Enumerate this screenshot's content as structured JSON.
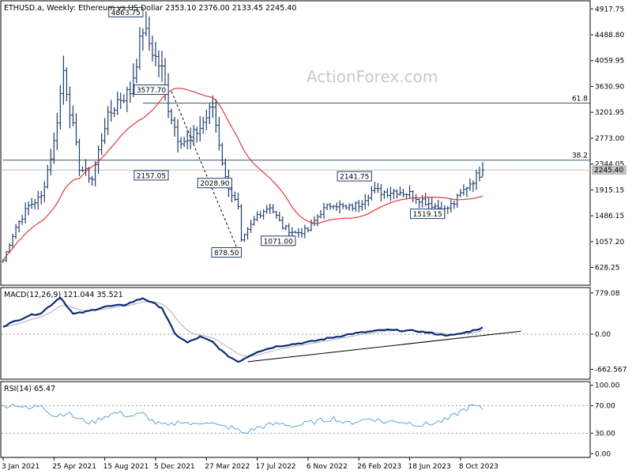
{
  "header": {
    "title": "ETHUSD.a, Weekly:  Ethereum vs US Dollar  2353.10 2376.00 2133.45 2245.40"
  },
  "watermark": "ActionForex.com",
  "colors": {
    "candle": "#1f3d6d",
    "ma": "#e03a3a",
    "macd": "#0b2a7a",
    "macd_signal": "#b0b0b0",
    "rsi": "#5aa6da",
    "fib": "#3e5a70",
    "trend": "#000000"
  },
  "price_axis": {
    "min": 400,
    "max": 5000,
    "ticks": [
      "4917.75",
      "4488.80",
      "4059.95",
      "3630.90",
      "3201.95",
      "2773.00",
      "2344.05",
      "1915.15",
      "1486.15",
      "1057.20",
      "628.25"
    ],
    "tick_values": [
      4917.75,
      4488.8,
      4059.95,
      3630.9,
      3201.95,
      2773.0,
      2344.05,
      1915.15,
      1486.15,
      1057.2,
      628.25
    ],
    "current_price": "2245.40",
    "current_value": 2245.4
  },
  "macd_axis": {
    "min": -820,
    "max": 850,
    "ticks": [
      "779.08",
      "0.00",
      "-662.567"
    ],
    "tick_values": [
      779.08,
      0,
      -662.567
    ]
  },
  "rsi_axis": {
    "min": -3,
    "max": 103,
    "ticks": [
      "100.00",
      "70.00",
      "30.00",
      "0.00"
    ],
    "tick_values": [
      100,
      70,
      30,
      0
    ]
  },
  "time_axis": {
    "labels": [
      "3 Jan 2021",
      "25 Apr 2021",
      "15 Aug 2021",
      "5 Dec 2021",
      "27 Mar 2022",
      "17 Jul 2022",
      "6 Nov 2022",
      "26 Feb 2023",
      "18 Jun 2023",
      "8 Oct 2023"
    ],
    "label_weeks": [
      0,
      16,
      32,
      48,
      64,
      80,
      96,
      112,
      128,
      144
    ]
  },
  "fib_levels": [
    {
      "label": "61.8",
      "value": 3355,
      "start_week": 44
    },
    {
      "label": "38.2",
      "value": 2409,
      "start_week": 0
    }
  ],
  "price_labels": [
    {
      "text": "4863.75",
      "week": 44,
      "value": 4863.75
    },
    {
      "text": "3577.70",
      "week": 52,
      "value": 3577.7
    },
    {
      "text": "2157.05",
      "week": 52,
      "value": 2157.05
    },
    {
      "text": "2028.90",
      "week": 72,
      "value": 2028.9
    },
    {
      "text": "878.50",
      "week": 75,
      "value": 878.5
    },
    {
      "text": "1071.00",
      "week": 92,
      "value": 1071.0
    },
    {
      "text": "2141.75",
      "week": 116,
      "value": 2141.75
    },
    {
      "text": "1519.15",
      "week": 139,
      "value": 1519.15
    }
  ],
  "indicators": {
    "macd_label": "MACD(12,26,9) 121.044 35.521",
    "rsi_label": "RSI(14) 65.47"
  },
  "chart_data": {
    "type": "line",
    "title": "ETHUSD.a, Weekly:  Ethereum vs US Dollar",
    "ohlc_current": {
      "open": 2353.1,
      "high": 2376.0,
      "low": 2133.45,
      "close": 2245.4
    },
    "close_anchors_week": [
      0,
      4,
      8,
      12,
      16,
      19,
      24,
      28,
      32,
      36,
      40,
      44,
      48,
      50,
      52,
      55,
      58,
      62,
      66,
      70,
      74,
      75,
      80,
      84,
      88,
      92,
      96,
      100,
      104,
      108,
      112,
      116,
      120,
      124,
      128,
      132,
      136,
      139,
      142,
      146,
      151
    ],
    "close_anchors_price": [
      750,
      1300,
      1650,
      1800,
      2700,
      3900,
      2300,
      2100,
      3000,
      3400,
      3550,
      4600,
      4100,
      3900,
      3300,
      2800,
      2700,
      2950,
      3300,
      2100,
      1600,
      1050,
      1500,
      1650,
      1300,
      1200,
      1250,
      1550,
      1700,
      1600,
      1680,
      1900,
      1880,
      1900,
      1850,
      1750,
      1650,
      1580,
      1700,
      1980,
      2245
    ],
    "macd_anchors_week": [
      0,
      8,
      12,
      18,
      22,
      26,
      32,
      38,
      44,
      50,
      54,
      58,
      62,
      66,
      70,
      74,
      80,
      86,
      96,
      110,
      120,
      130,
      138,
      142,
      146,
      151
    ],
    "macd_anchors_value": [
      150,
      350,
      400,
      700,
      380,
      420,
      520,
      550,
      680,
      500,
      10,
      -160,
      -50,
      -150,
      -380,
      -520,
      -330,
      -230,
      -150,
      10,
      80,
      60,
      -10,
      -20,
      40,
      121
    ],
    "rsi_anchors_week": [
      0,
      4,
      8,
      12,
      16,
      20,
      24,
      28,
      32,
      36,
      40,
      44,
      48,
      52,
      56,
      60,
      64,
      68,
      72,
      76,
      80,
      84,
      88,
      92,
      96,
      100,
      104,
      108,
      112,
      116,
      120,
      124,
      128,
      132,
      136,
      140,
      144,
      148,
      151
    ],
    "rsi_anchors_value": [
      70,
      72,
      65,
      72,
      55,
      60,
      50,
      45,
      55,
      60,
      55,
      58,
      45,
      40,
      48,
      42,
      48,
      40,
      38,
      30,
      38,
      42,
      44,
      40,
      45,
      48,
      52,
      44,
      48,
      52,
      46,
      48,
      45,
      42,
      45,
      50,
      62,
      70,
      65
    ]
  }
}
